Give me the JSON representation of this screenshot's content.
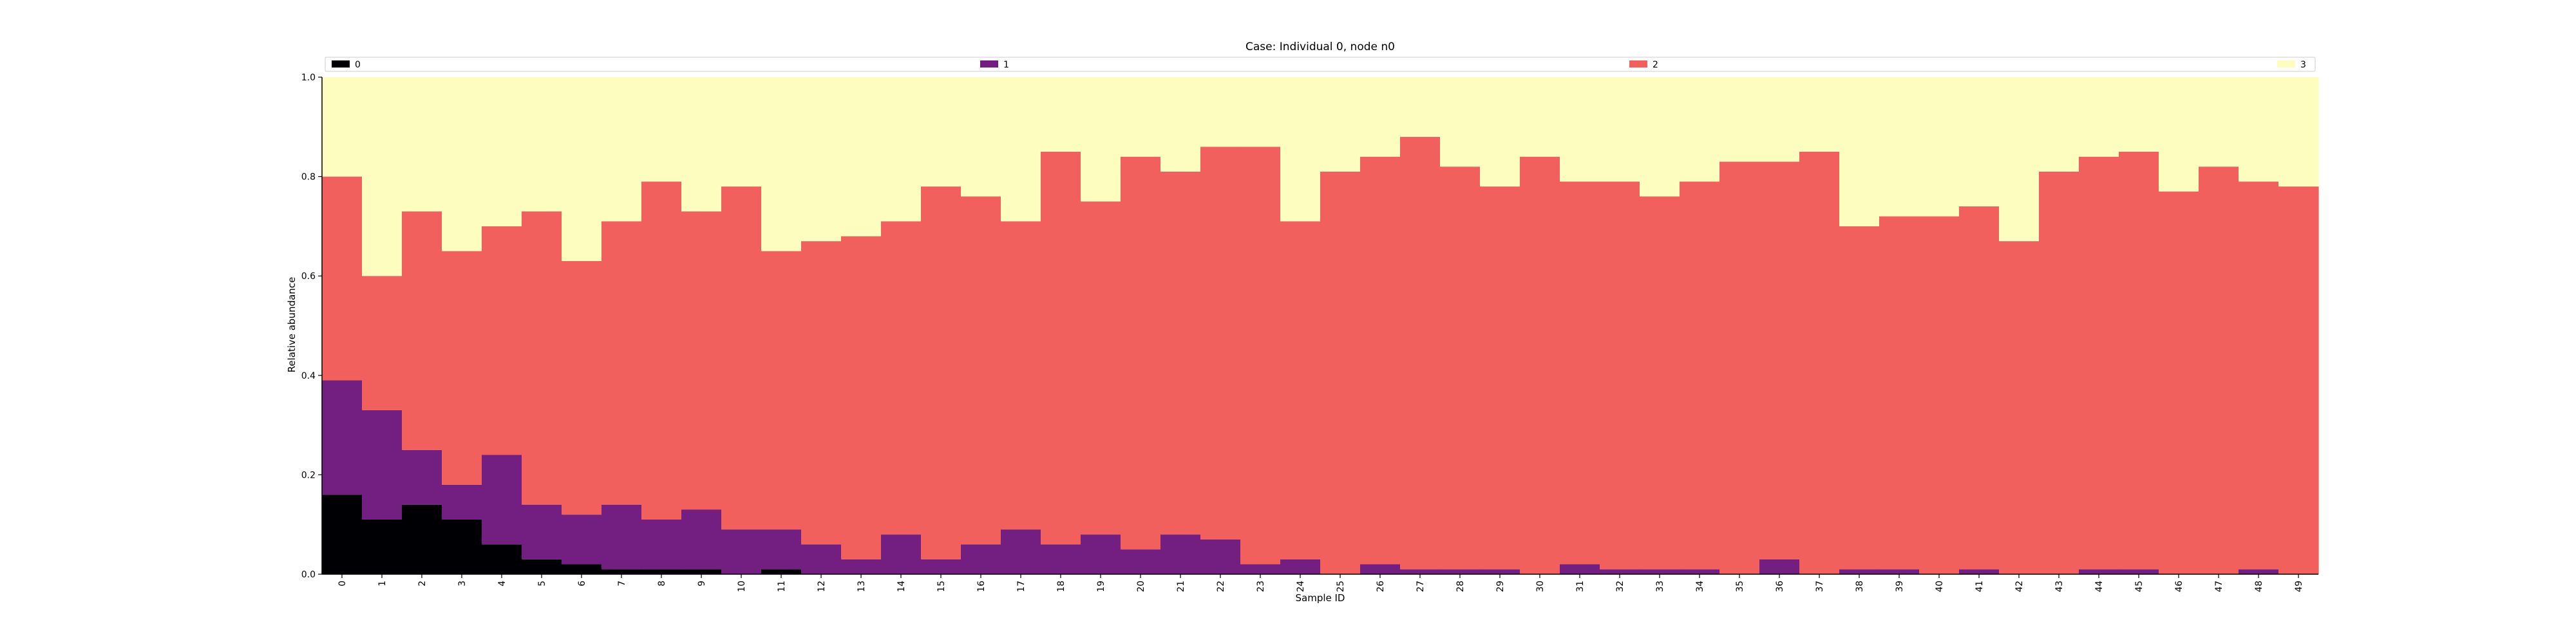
{
  "chart_data": {
    "type": "bar",
    "stacked": true,
    "title": "Case: Individual 0, node n0",
    "xlabel": "Sample ID",
    "ylabel": "Relative abundance",
    "ylim": [
      0,
      1
    ],
    "yticks": [
      "0.0",
      "0.2",
      "0.4",
      "0.6",
      "0.8",
      "1.0"
    ],
    "legend_position": "top",
    "categories": [
      "0",
      "1",
      "2",
      "3",
      "4",
      "5",
      "6",
      "7",
      "8",
      "9",
      "10",
      "11",
      "12",
      "13",
      "14",
      "15",
      "16",
      "17",
      "18",
      "19",
      "20",
      "21",
      "22",
      "23",
      "24",
      "25",
      "26",
      "27",
      "28",
      "29",
      "30",
      "31",
      "32",
      "33",
      "34",
      "35",
      "36",
      "37",
      "38",
      "39",
      "40",
      "41",
      "42",
      "43",
      "44",
      "45",
      "46",
      "47",
      "48",
      "49"
    ],
    "series": [
      {
        "name": "0",
        "color": "#000004",
        "values": [
          0.16,
          0.11,
          0.14,
          0.11,
          0.06,
          0.03,
          0.02,
          0.01,
          0.01,
          0.01,
          0.0,
          0.01,
          0.0,
          0.0,
          0.0,
          0.0,
          0.0,
          0.0,
          0.0,
          0.0,
          0.0,
          0.0,
          0.0,
          0.0,
          0.0,
          0.0,
          0.0,
          0.0,
          0.0,
          0.0,
          0.0,
          0.0,
          0.0,
          0.0,
          0.0,
          0.0,
          0.0,
          0.0,
          0.0,
          0.0,
          0.0,
          0.0,
          0.0,
          0.0,
          0.0,
          0.0,
          0.0,
          0.0,
          0.0,
          0.0
        ]
      },
      {
        "name": "1",
        "color": "#721f81",
        "values": [
          0.23,
          0.22,
          0.11,
          0.07,
          0.18,
          0.11,
          0.1,
          0.13,
          0.1,
          0.12,
          0.09,
          0.08,
          0.06,
          0.03,
          0.08,
          0.03,
          0.06,
          0.09,
          0.06,
          0.08,
          0.05,
          0.08,
          0.07,
          0.02,
          0.03,
          0.0,
          0.02,
          0.01,
          0.01,
          0.01,
          0.0,
          0.02,
          0.01,
          0.01,
          0.01,
          0.0,
          0.03,
          0.0,
          0.01,
          0.01,
          0.0,
          0.01,
          0.0,
          0.0,
          0.01,
          0.01,
          0.0,
          0.0,
          0.01,
          0.0
        ]
      },
      {
        "name": "2",
        "color": "#f1605d",
        "values": [
          0.41,
          0.27,
          0.48,
          0.47,
          0.46,
          0.59,
          0.51,
          0.57,
          0.68,
          0.6,
          0.69,
          0.56,
          0.61,
          0.65,
          0.63,
          0.75,
          0.7,
          0.62,
          0.79,
          0.67,
          0.79,
          0.73,
          0.79,
          0.84,
          0.68,
          0.81,
          0.82,
          0.87,
          0.81,
          0.77,
          0.84,
          0.77,
          0.78,
          0.75,
          0.78,
          0.83,
          0.8,
          0.85,
          0.69,
          0.71,
          0.72,
          0.73,
          0.67,
          0.81,
          0.83,
          0.84,
          0.77,
          0.82,
          0.78,
          0.78
        ]
      },
      {
        "name": "3",
        "color": "#fcfdbf",
        "values": [
          0.2,
          0.4,
          0.27,
          0.35,
          0.3,
          0.27,
          0.37,
          0.29,
          0.21,
          0.27,
          0.22,
          0.35,
          0.33,
          0.32,
          0.29,
          0.22,
          0.24,
          0.29,
          0.15,
          0.25,
          0.16,
          0.19,
          0.14,
          0.14,
          0.29,
          0.19,
          0.16,
          0.12,
          0.18,
          0.22,
          0.16,
          0.21,
          0.21,
          0.24,
          0.21,
          0.17,
          0.17,
          0.15,
          0.3,
          0.28,
          0.28,
          0.26,
          0.33,
          0.19,
          0.16,
          0.15,
          0.23,
          0.18,
          0.21,
          0.22
        ]
      }
    ]
  }
}
